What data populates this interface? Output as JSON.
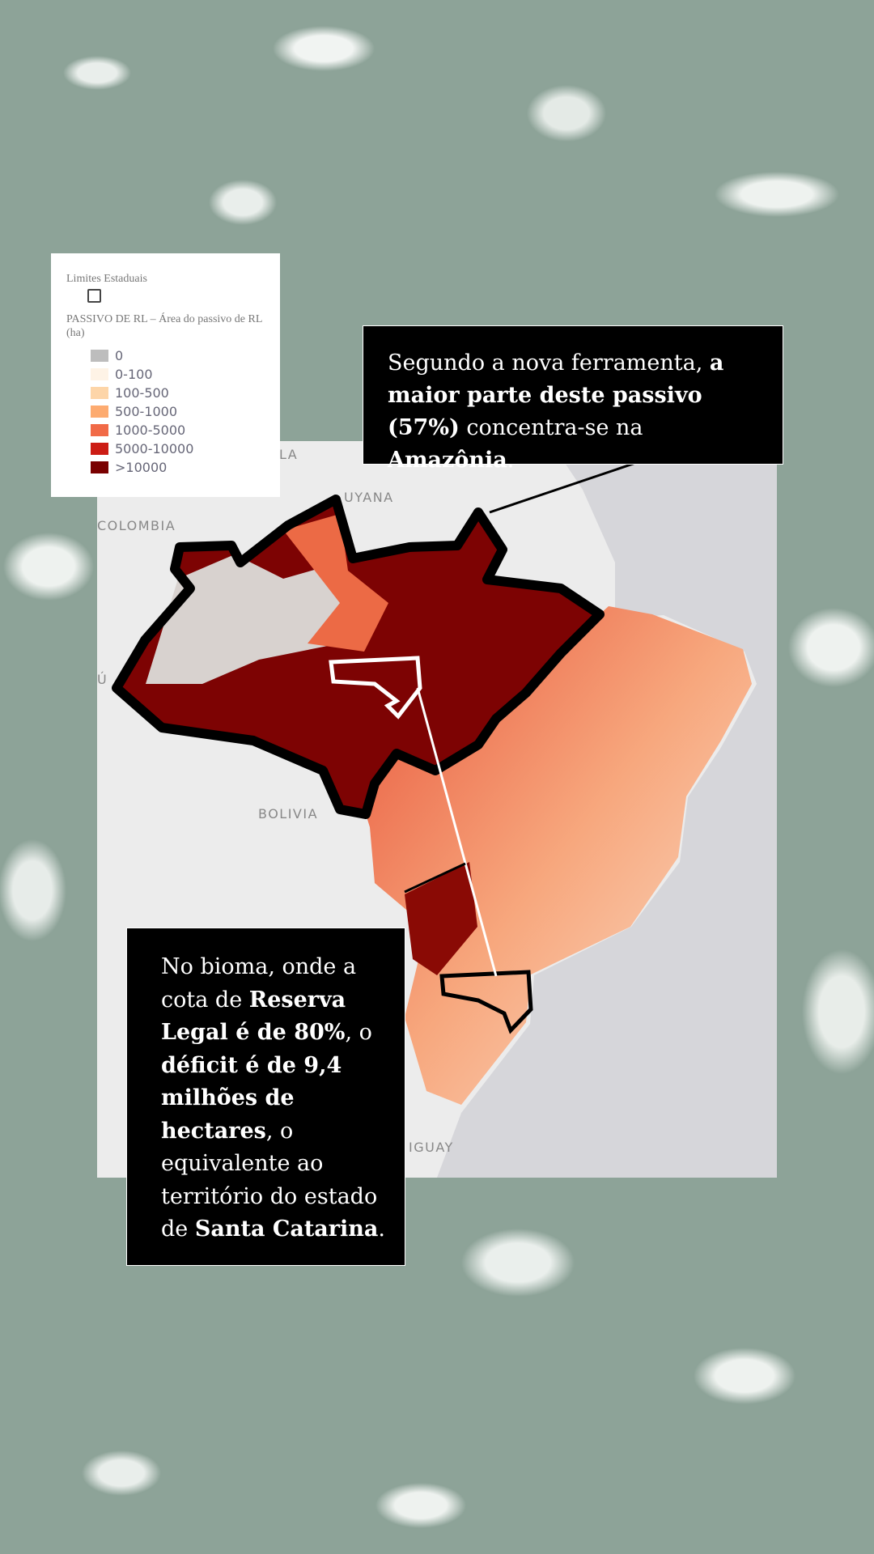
{
  "legend": {
    "layer1_title": "Limites Estaduais",
    "layer2_title": "PASSIVO DE RL – Área do passivo de RL (ha)",
    "items": [
      {
        "label": "0",
        "color": "#bdbdbd"
      },
      {
        "label": "0-100",
        "color": "#fef3e6"
      },
      {
        "label": "100-500",
        "color": "#fdd5a8"
      },
      {
        "label": "500-1000",
        "color": "#fdab70"
      },
      {
        "label": "1000-5000",
        "color": "#f16a47"
      },
      {
        "label": "5000-10000",
        "color": "#cc1c14"
      },
      {
        "label": ">10000",
        "color": "#7a0000"
      }
    ]
  },
  "map": {
    "labels": {
      "venezuela": "LA",
      "guyana": "UYANA",
      "colombia": "COLOMBIA",
      "peru": "Ú",
      "bolivia": "BOLIVIA",
      "paraguay": "IGUAY"
    }
  },
  "callout_top": {
    "t1": "Segundo a nova ferramenta, ",
    "b1": "a maior parte deste passivo (57%)",
    "t2": " concentra-se na ",
    "b2": "Amazônia",
    "t3": "."
  },
  "callout_bottom": {
    "t1": "No bioma, onde a cota de ",
    "b1": "Reserva Legal é de 80%",
    "t2": ", o ",
    "b2": "déficit é de 9,4 milhões de hectares",
    "t3": ", o equivalente ao território do estado de ",
    "b3": "Santa Catarina",
    "t4": "."
  }
}
